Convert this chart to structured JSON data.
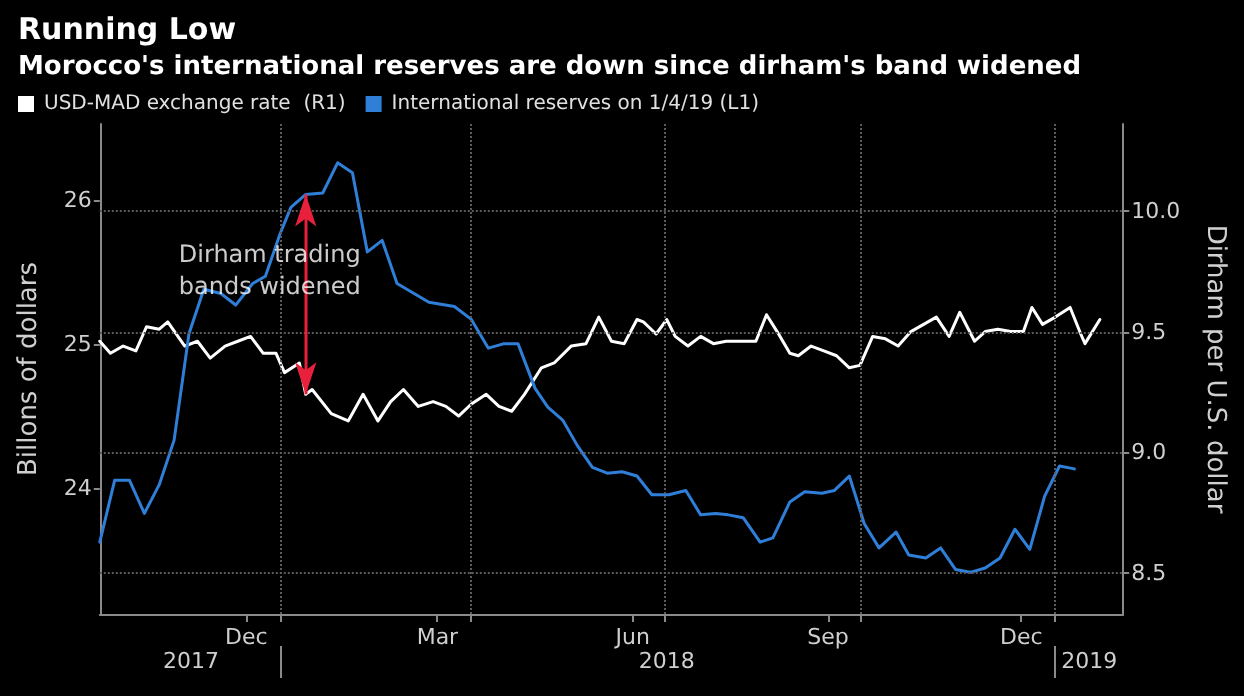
{
  "chart_data": {
    "type": "line",
    "title": "Running Low",
    "subtitle": "Morocco's international reserves are down since dirham's band widened",
    "ylabel": "Billons of dollars",
    "y2label": "Dirham per U.S. dollar",
    "xlim": [
      "2017-10-08",
      "2019-02-02"
    ],
    "xticks": [
      {
        "value": "2017-12-16",
        "label": "Dec"
      },
      {
        "value": "2018-03-16",
        "label": "Mar"
      },
      {
        "value": "2018-06-16",
        "label": "Jun"
      },
      {
        "value": "2018-09-16",
        "label": "Sep"
      },
      {
        "value": "2018-12-16",
        "label": "Dec"
      },
      {
        "value": "2018-01-01",
        "label": null
      },
      {
        "value": "2018-04-01",
        "label": null
      },
      {
        "value": "2018-07-01",
        "label": null
      },
      {
        "value": "2018-10-01",
        "label": null
      },
      {
        "value": "2019-01-01",
        "label": null
      }
    ],
    "x2lim": [
      "2017-10-08",
      "2019-02-02"
    ],
    "x2ticks": [
      {
        "value": "2017-11-20",
        "label": "2017"
      },
      {
        "value": "2018-07-02",
        "label": "2018"
      },
      {
        "value": "2019-01-17",
        "label": "2019"
      },
      {
        "value": "2018-01-01",
        "label": null
      },
      {
        "value": "2019-01-01",
        "label": null
      }
    ],
    "ylim": [
      23.12,
      26.53
    ],
    "yticks": [
      24,
      25,
      26
    ],
    "y2lim": [
      8.33,
      10.36
    ],
    "y2ticks": [
      {
        "value": 8.5,
        "label": "8.5"
      },
      {
        "value": 9,
        "label": "9.0"
      },
      {
        "value": 9.5,
        "label": "9.5"
      },
      {
        "value": 10,
        "label": "10.0"
      }
    ],
    "grid": true,
    "legend": "top left",
    "marker": "none",
    "line_style": "solid",
    "annotations": [
      {
        "text": "Dirham trading\nbands widened",
        "x": "2018-01-13",
        "y": 26.04
      }
    ],
    "series": [
      {
        "name": "USD-MAD exchange rate  (R1)",
        "color": "#ffffff",
        "axis": "y2",
        "x": [
          "2017-10-08",
          "2017-10-13",
          "2017-10-19",
          "2017-10-25",
          "2017-10-30",
          "2017-11-05",
          "2017-11-09",
          "2017-11-17",
          "2017-11-23",
          "2017-11-29",
          "2017-12-06",
          "2017-12-12",
          "2017-12-18",
          "2017-12-24",
          "2017-12-30",
          "2018-01-03",
          "2018-01-10",
          "2018-01-13",
          "2018-01-16",
          "2018-01-25",
          "2018-02-02",
          "2018-02-09",
          "2018-02-16",
          "2018-02-22",
          "2018-02-28",
          "2018-03-07",
          "2018-03-14",
          "2018-03-20",
          "2018-03-26",
          "2018-04-01",
          "2018-04-08",
          "2018-04-14",
          "2018-04-20",
          "2018-04-26",
          "2018-05-04",
          "2018-05-10",
          "2018-05-18",
          "2018-05-25",
          "2018-05-31",
          "2018-06-06",
          "2018-06-12",
          "2018-06-18",
          "2018-06-21",
          "2018-06-27",
          "2018-07-02",
          "2018-07-06",
          "2018-07-12",
          "2018-07-18",
          "2018-07-24",
          "2018-07-30",
          "2018-08-07",
          "2018-08-13",
          "2018-08-18",
          "2018-08-23",
          "2018-08-29",
          "2018-09-02",
          "2018-09-08",
          "2018-09-14",
          "2018-09-20",
          "2018-09-26",
          "2018-10-01",
          "2018-10-07",
          "2018-10-13",
          "2018-10-19",
          "2018-10-25",
          "2018-10-31",
          "2018-11-06",
          "2018-11-12",
          "2018-11-17",
          "2018-11-24",
          "2018-11-29",
          "2018-12-05",
          "2018-12-11",
          "2018-12-17",
          "2018-12-21",
          "2018-12-26",
          "2019-01-01",
          "2019-01-08",
          "2019-01-13",
          "2019-01-15",
          "2019-01-22"
        ],
        "values": [
          9.46,
          9.41,
          9.44,
          9.42,
          9.52,
          9.51,
          9.54,
          9.44,
          9.46,
          9.39,
          9.44,
          9.46,
          9.48,
          9.41,
          9.41,
          9.33,
          9.37,
          9.24,
          9.26,
          9.16,
          9.13,
          9.24,
          9.13,
          9.21,
          9.26,
          9.19,
          9.21,
          9.19,
          9.15,
          9.2,
          9.24,
          9.19,
          9.17,
          9.24,
          9.35,
          9.37,
          9.44,
          9.45,
          9.56,
          9.46,
          9.45,
          9.55,
          9.54,
          9.49,
          9.55,
          9.48,
          9.44,
          9.48,
          9.45,
          9.46,
          9.46,
          9.46,
          9.57,
          9.5,
          9.41,
          9.4,
          9.44,
          9.42,
          9.4,
          9.35,
          9.36,
          9.48,
          9.47,
          9.44,
          9.5,
          9.53,
          9.56,
          9.48,
          9.58,
          9.46,
          9.5,
          9.51,
          9.5,
          9.5,
          9.6,
          9.53,
          9.56,
          9.6,
          9.49,
          9.45,
          9.55
        ]
      },
      {
        "name": "International reserves on 1/4/19 (L1)",
        "color": "#2f7fd8",
        "axis": "y",
        "x": [
          "2017-10-08",
          "2017-10-15",
          "2017-10-22",
          "2017-10-29",
          "2017-11-05",
          "2017-11-12",
          "2017-11-19",
          "2017-11-26",
          "2017-12-04",
          "2017-12-11",
          "2017-12-19",
          "2017-12-25",
          "2018-01-01",
          "2018-01-06",
          "2018-01-13",
          "2018-01-21",
          "2018-01-28",
          "2018-02-04",
          "2018-02-11",
          "2018-02-18",
          "2018-02-25",
          "2018-03-05",
          "2018-03-12",
          "2018-03-24",
          "2018-04-01",
          "2018-04-09",
          "2018-04-16",
          "2018-04-23",
          "2018-05-01",
          "2018-05-07",
          "2018-05-14",
          "2018-05-21",
          "2018-05-28",
          "2018-06-04",
          "2018-06-11",
          "2018-06-18",
          "2018-06-25",
          "2018-07-03",
          "2018-07-11",
          "2018-07-18",
          "2018-07-25",
          "2018-07-31",
          "2018-08-07",
          "2018-08-15",
          "2018-08-21",
          "2018-08-29",
          "2018-09-05",
          "2018-09-13",
          "2018-09-19",
          "2018-09-26",
          "2018-10-03",
          "2018-10-10",
          "2018-10-18",
          "2018-10-24",
          "2018-11-01",
          "2018-11-08",
          "2018-11-15",
          "2018-11-22",
          "2018-11-29",
          "2018-12-06",
          "2018-12-13",
          "2018-12-20",
          "2018-12-27",
          "2019-01-03",
          "2019-01-10"
        ],
        "values": [
          23.62,
          24.05,
          24.05,
          23.82,
          24.02,
          24.33,
          25.07,
          25.38,
          25.35,
          25.27,
          25.42,
          25.47,
          25.77,
          25.95,
          26.04,
          26.05,
          26.26,
          26.19,
          25.64,
          25.72,
          25.42,
          25.35,
          25.29,
          25.26,
          25.17,
          24.97,
          25.0,
          25.0,
          24.69,
          24.56,
          24.47,
          24.29,
          24.14,
          24.1,
          24.11,
          24.08,
          23.95,
          23.95,
          23.98,
          23.81,
          23.82,
          23.81,
          23.79,
          23.62,
          23.65,
          23.9,
          23.97,
          23.96,
          23.98,
          24.08,
          23.75,
          23.58,
          23.69,
          23.53,
          23.51,
          23.58,
          23.43,
          23.41,
          23.44,
          23.51,
          23.71,
          23.57,
          23.94,
          24.15,
          24.13
        ]
      }
    ]
  }
}
